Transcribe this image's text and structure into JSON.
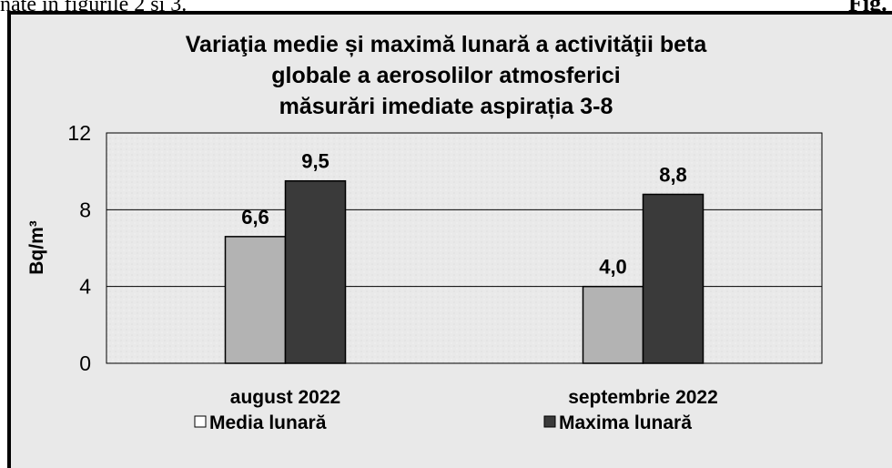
{
  "caption_left": "nate în figurile 2 şi 3.",
  "caption_right": "Fig.",
  "chart_data": {
    "type": "bar",
    "title": [
      "Variaţia medie și maximă lunară a activităţii beta",
      "globale  a aerosolilor atmosferici",
      "măsurări imediate aspirația 3-8"
    ],
    "y_label": "Bq/m³",
    "categories": [
      "august 2022",
      "septembrie 2022"
    ],
    "series": [
      {
        "name": "Media lunară",
        "color": "#b3b3b3",
        "values": [
          6.6,
          4.0
        ],
        "value_labels": [
          "6,6",
          "4,0"
        ]
      },
      {
        "name": "Maxima lunară",
        "color": "#3a3a3a",
        "values": [
          9.5,
          8.8
        ],
        "value_labels": [
          "9,5",
          "8,8"
        ]
      }
    ],
    "ylim": [
      0,
      12
    ],
    "yticks": [
      0,
      4,
      8,
      12
    ],
    "grid": true,
    "legend": "bottom"
  }
}
